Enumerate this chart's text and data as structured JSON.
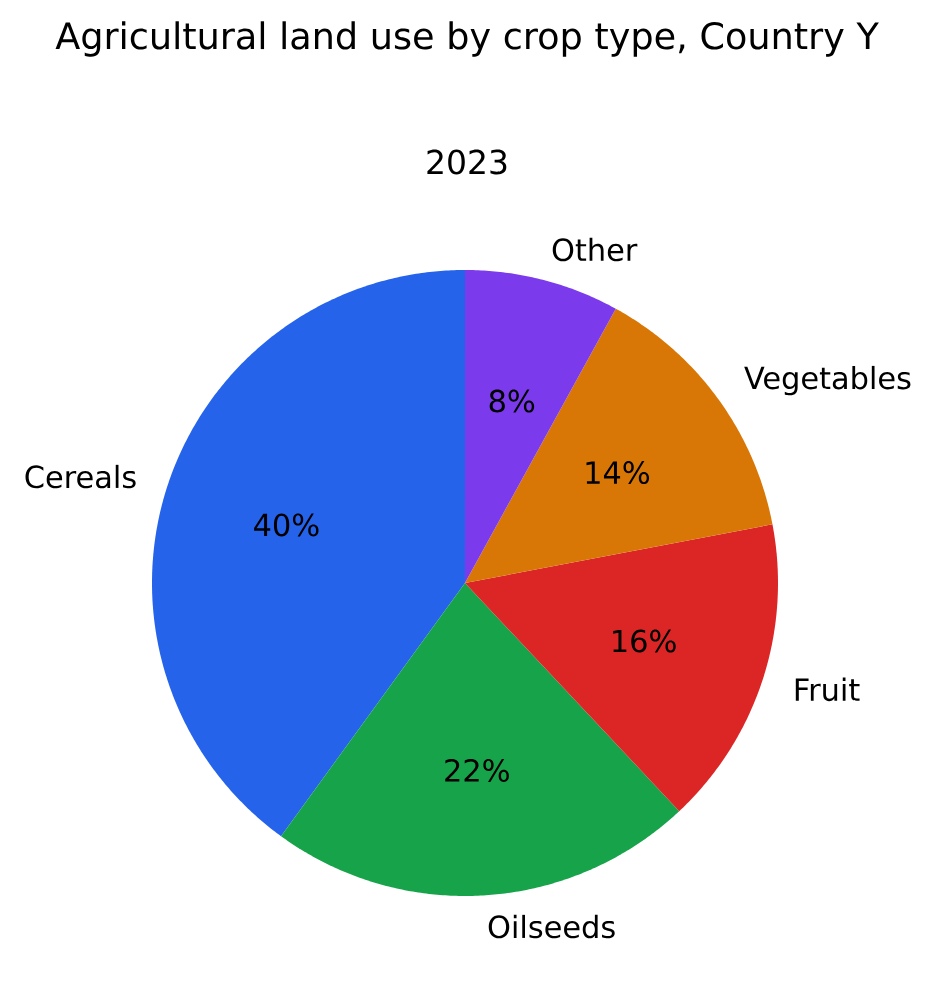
{
  "chart_data": {
    "type": "pie",
    "title": "Agricultural land use by crop type, Country Y",
    "subtitle": "2023",
    "categories": [
      "Cereals",
      "Oilseeds",
      "Fruit",
      "Vegetables",
      "Other"
    ],
    "values": [
      40,
      22,
      16,
      14,
      8
    ],
    "colors": [
      "#2563eb",
      "#16a34a",
      "#dc2626",
      "#d97706",
      "#7c3aed"
    ],
    "value_labels": [
      "40%",
      "22%",
      "16%",
      "14%",
      "8%"
    ]
  }
}
